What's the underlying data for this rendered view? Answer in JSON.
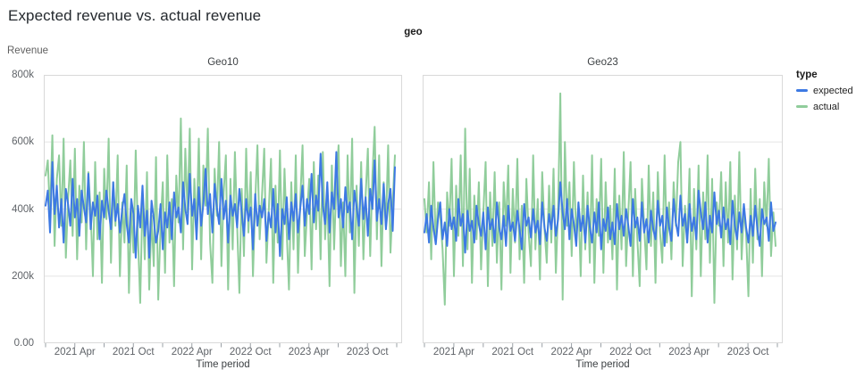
{
  "title": "Expected revenue vs. actual revenue",
  "facet_header": "geo",
  "y_axis": {
    "label": "Revenue",
    "tick_values": [
      0,
      200,
      400,
      600,
      800
    ],
    "tick_labels": [
      "0.00",
      "200k",
      "400k",
      "600k",
      "800k"
    ]
  },
  "x_axis": {
    "label": "Time period",
    "tick_labels": [
      "2021 Apr",
      "2021 Oct",
      "2022 Apr",
      "2022 Oct",
      "2023 Apr",
      "2023 Oct"
    ],
    "tick_count": 13,
    "labeled_tick_indices": [
      1,
      3,
      5,
      7,
      9,
      11
    ]
  },
  "legend": {
    "title": "type",
    "items": [
      {
        "label": "expected",
        "color": "#3d79e3"
      },
      {
        "label": "actual",
        "color": "#90cd9b"
      }
    ]
  },
  "colors": {
    "expected": "#3d79e3",
    "actual": "#90cd9b",
    "gridline": "#e6e6e6",
    "plot_border": "#d9d9d9",
    "tick_mark": "#9aa0a6"
  },
  "chart_data": {
    "type": "line",
    "faceted_by": "geo",
    "x_unit": "week",
    "x_range": [
      "2021 Jan",
      "2023 Dec"
    ],
    "ylim": [
      0,
      800
    ],
    "y_values_in": "thousands",
    "grid": true,
    "legend_position": "right",
    "facets": [
      {
        "title": "Geo10",
        "series": [
          {
            "name": "expected",
            "color": "#3d79e3",
            "values": [
              410,
              455,
              330,
              540,
              385,
              470,
              345,
              430,
              300,
              460,
              415,
              350,
              490,
              375,
              430,
              320,
              455,
              405,
              360,
              505,
              340,
              420,
              380,
              440,
              310,
              425,
              375,
              455,
              395,
              340,
              480,
              365,
              415,
              330,
              400,
              445,
              355,
              300,
              430,
              385,
              255,
              410,
              345,
              470,
              320,
              395,
              255,
              425,
              370,
              300,
              335,
              415,
              280,
              390,
              345,
              420,
              310,
              450,
              375,
              405,
              330,
              480,
              400,
              355,
              505,
              380,
              430,
              310,
              465,
              350,
              415,
              520,
              385,
              445,
              330,
              475,
              405,
              355,
              490,
              370,
              425,
              300,
              440,
              380,
              415,
              345,
              460,
              390,
              320,
              430,
              365,
              405,
              280,
              445,
              350,
              410,
              375,
              430,
              305,
              390,
              345,
              460,
              330,
              415,
              260,
              400,
              355,
              435,
              310,
              420,
              365,
              445,
              330,
              405,
              470,
              350,
              430,
              385,
              505,
              360,
              440,
              395,
              565,
              410,
              355,
              480,
              330,
              450,
              400,
              570,
              375,
              430,
              345,
              465,
              390,
              420,
              310,
              455,
              405,
              350,
              490,
              370,
              435,
              320,
              460,
              400,
              545,
              365,
              430,
              355,
              475,
              340,
              415,
              460,
              335,
              525
            ]
          },
          {
            "name": "actual",
            "color": "#90cd9b",
            "values": [
              500,
              545,
              380,
              620,
              290,
              490,
              560,
              350,
              610,
              255,
              430,
              545,
              320,
              580,
              250,
              470,
              360,
              600,
              280,
              510,
              390,
              200,
              540,
              310,
              450,
              180,
              520,
              370,
              610,
              240,
              480,
              350,
              560,
              200,
              420,
              300,
              530,
              150,
              400,
              270,
              575,
              320,
              120,
              440,
              250,
              510,
              160,
              380,
              230,
              555,
              130,
              350,
              480,
              210,
              560,
              300,
              430,
              170,
              500,
              360,
              670,
              280,
              580,
              390,
              640,
              220,
              490,
              340,
              610,
              250,
              530,
              410,
              640,
              300,
              180,
              520,
              380,
              600,
              230,
              450,
              560,
              160,
              490,
              280,
              570,
              350,
              150,
              460,
              260,
              580,
              330,
              510,
              200,
              420,
              590,
              310,
              440,
              580,
              240,
              390,
              550,
              180,
              470,
              300,
              575,
              250,
              520,
              330,
              160,
              480,
              280,
              560,
              210,
              430,
              590,
              260,
              390,
              490,
              220,
              540,
              340,
              500,
              250,
              570,
              310,
              450,
              170,
              530,
              280,
              475,
              590,
              230,
              420,
              200,
              560,
              330,
              610,
              150,
              470,
              290,
              540,
              250,
              440,
              580,
              260,
              500,
              645,
              310,
              560,
              230,
              480,
              350,
              590,
              270,
              420,
              560
            ]
          }
        ]
      },
      {
        "title": "Geo23",
        "series": [
          {
            "name": "expected",
            "color": "#3d79e3",
            "values": [
              330,
              385,
              300,
              410,
              345,
              295,
              370,
              420,
              310,
              360,
              290,
              400,
              340,
              375,
              305,
              430,
              350,
              385,
              270,
              395,
              335,
              365,
              300,
              410,
              355,
              320,
              390,
              280,
              405,
              340,
              370,
              300,
              420,
              345,
              310,
              380,
              290,
              410,
              335,
              360,
              305,
              395,
              340,
              280,
              415,
              350,
              375,
              315,
              400,
              330,
              365,
              295,
              420,
              345,
              305,
              385,
              340,
              410,
              320,
              370,
              480,
              390,
              340,
              430,
              310,
              400,
              355,
              290,
              420,
              335,
              380,
              300,
              410,
              345,
              300,
              390,
              330,
              420,
              280,
              370,
              335,
              405,
              310,
              360,
              295,
              415,
              340,
              380,
              320,
              400,
              350,
              290,
              430,
              345,
              375,
              305,
              420,
              330,
              370,
              300,
              395,
              340,
              310,
              425,
              350,
              380,
              290,
              405,
              345,
              305,
              430,
              360,
              320,
              440,
              350,
              385,
              300,
              415,
              335,
              375,
              310,
              455,
              390,
              340,
              420,
              300,
              380,
              330,
              450,
              355,
              395,
              315,
              405,
              340,
              370,
              295,
              425,
              350,
              310,
              390,
              330,
              415,
              345,
              300,
              380,
              320,
              410,
              340,
              290,
              400,
              355,
              375,
              305,
              420,
              335,
              360
            ]
          },
          {
            "name": "actual",
            "color": "#90cd9b",
            "values": [
              430,
              330,
              480,
              250,
              540,
              300,
              420,
              380,
              280,
              115,
              450,
              350,
              550,
              200,
              470,
              320,
              560,
              230,
              640,
              280,
              520,
              180,
              440,
              310,
              480,
              220,
              390,
              540,
              170,
              450,
              290,
              510,
              240,
              420,
              160,
              480,
              350,
              530,
              210,
              460,
              300,
              550,
              250,
              410,
              180,
              490,
              330,
              230,
              560,
              280,
              430,
              190,
              510,
              340,
              240,
              470,
              300,
              520,
              210,
              400,
              745,
              130,
              600,
              350,
              480,
              260,
              540,
              310,
              420,
              200,
              500,
              280,
              450,
              240,
              560,
              180,
              430,
              320,
              550,
              210,
              480,
              300,
              410,
              250,
              520,
              160,
              440,
              280,
              570,
              230,
              390,
              540,
              200,
              460,
              310,
              170,
              490,
              350,
              220,
              530,
              290,
              450,
              180,
              510,
              330,
              240,
              560,
              300,
              420,
              250,
              480,
              350,
              540,
              600,
              230,
              410,
              300,
              520,
              140,
              460,
              280,
              530,
              200,
              450,
              310,
              560,
              240,
              490,
              120,
              420,
              350,
              510,
              230,
              480,
              300,
              540,
              190,
              440,
              280,
              570,
              250,
              400,
              330,
              140,
              460,
              240,
              520,
              310,
              430,
              200,
              480,
              350,
              550,
              260,
              390,
              290
            ]
          }
        ]
      }
    ]
  }
}
